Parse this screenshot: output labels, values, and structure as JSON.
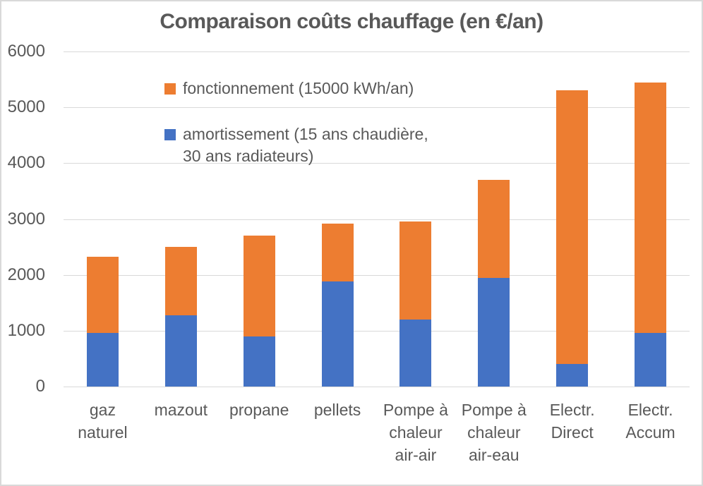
{
  "window": {
    "background": "#FFFFFF",
    "border_color": "#D9D9D9"
  },
  "chart_data": {
    "type": "bar",
    "stacked": true,
    "title": "Comparaison coûts chauffage (en €/an)",
    "title_color": "#595959",
    "categories": [
      "gaz naturel",
      "mazout",
      "propane",
      "pellets",
      "Pompe à chaleur air-air",
      "Pompe à chaleur air-eau",
      "Electr. Direct",
      "Electr. Accum"
    ],
    "category_label_lines": [
      [
        "gaz",
        "naturel"
      ],
      [
        "mazout"
      ],
      [
        "propane"
      ],
      [
        "pellets"
      ],
      [
        "Pompe à",
        "chaleur",
        "air-air"
      ],
      [
        "Pompe à",
        "chaleur",
        "air-eau"
      ],
      [
        "Electr.",
        "Direct"
      ],
      [
        "Electr.",
        "Accum"
      ]
    ],
    "series": [
      {
        "name": "amortissement (15 ans chaudière, 30 ans radiateurs)",
        "color": "#4472C4",
        "values": [
          960,
          1280,
          900,
          1880,
          1200,
          1940,
          400,
          960
        ]
      },
      {
        "name": "fonctionnement (15000 kWh/an)",
        "color": "#ED7D31",
        "values": [
          1360,
          1220,
          1800,
          1040,
          1760,
          1760,
          4900,
          4490
        ]
      }
    ],
    "totals": [
      2320,
      2500,
      2700,
      2920,
      2960,
      3700,
      5300,
      5450
    ],
    "legend": {
      "position": "upper-left-inside",
      "items": [
        {
          "series": "fonctionnement",
          "color": "#ED7D31",
          "label_lines": [
            "fonctionnement (15000 kWh/an)"
          ]
        },
        {
          "series": "amortissement",
          "color": "#4472C4",
          "label_lines": [
            "amortissement (15 ans chaudière,",
            "30 ans radiateurs)"
          ]
        }
      ]
    },
    "xlabel": "",
    "ylabel": "",
    "ylim": [
      0,
      6000
    ],
    "yticks": [
      0,
      1000,
      2000,
      3000,
      4000,
      5000,
      6000
    ],
    "grid": true,
    "gridline_color": "#D9D9D9",
    "axis_text_color": "#595959"
  }
}
